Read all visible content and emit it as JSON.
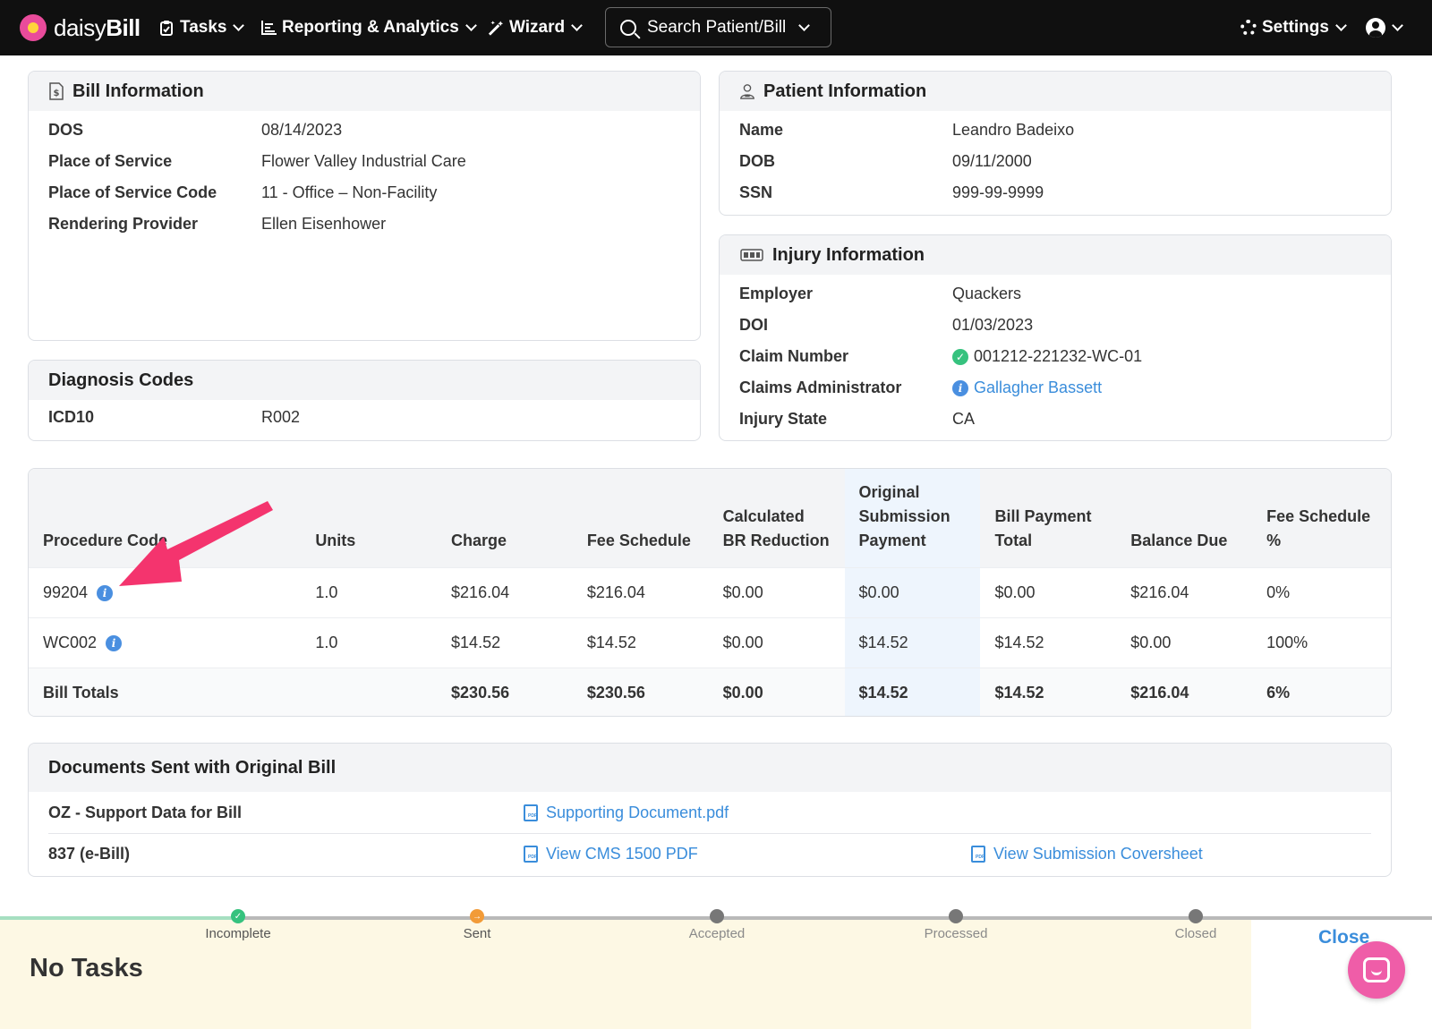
{
  "nav": {
    "brand_prefix": "daisy",
    "brand_suffix": "Bill",
    "tasks": "Tasks",
    "reporting": "Reporting & Analytics",
    "wizard": "Wizard",
    "search": "Search Patient/Bill",
    "settings": "Settings"
  },
  "bill_info": {
    "title": "Bill Information",
    "rows": [
      {
        "label": "DOS",
        "value": "08/14/2023"
      },
      {
        "label": "Place of Service",
        "value": "Flower Valley Industrial Care"
      },
      {
        "label": "Place of Service Code",
        "value": "11 - Office – Non-Facility"
      },
      {
        "label": "Rendering Provider",
        "value": "Ellen Eisenhower"
      }
    ]
  },
  "diagnosis": {
    "title": "Diagnosis Codes",
    "label": "ICD10",
    "value": "R002"
  },
  "patient": {
    "title": "Patient Information",
    "rows": [
      {
        "label": "Name",
        "value": "Leandro Badeixo"
      },
      {
        "label": "DOB",
        "value": "09/11/2000"
      },
      {
        "label": "SSN",
        "value": "999-99-9999"
      }
    ]
  },
  "injury": {
    "title": "Injury Information",
    "employer_label": "Employer",
    "employer": "Quackers",
    "doi_label": "DOI",
    "doi": "01/03/2023",
    "claim_label": "Claim Number",
    "claim": "001212-221232-WC-01",
    "admin_label": "Claims Administrator",
    "admin": "Gallagher Bassett",
    "state_label": "Injury State",
    "state": "CA"
  },
  "procedures": {
    "headers": {
      "code": "Procedure Code",
      "units": "Units",
      "charge": "Charge",
      "fee": "Fee Schedule",
      "br_1": "Calculated",
      "br_2": "BR Reduction",
      "osp_1": "Original",
      "osp_2": "Submission",
      "osp_3": "Payment",
      "bpt_1": "Bill Payment",
      "bpt_2": "Total",
      "balance": "Balance Due",
      "pct_1": "Fee Schedule",
      "pct_2": "%"
    },
    "rows": [
      {
        "code": "99204",
        "units": "1.0",
        "charge": "$216.04",
        "fee": "$216.04",
        "br": "$0.00",
        "osp": "$0.00",
        "bpt": "$0.00",
        "balance": "$216.04",
        "pct": "0%"
      },
      {
        "code": "WC002",
        "units": "1.0",
        "charge": "$14.52",
        "fee": "$14.52",
        "br": "$0.00",
        "osp": "$14.52",
        "bpt": "$14.52",
        "balance": "$0.00",
        "pct": "100%"
      }
    ],
    "totals": {
      "label": "Bill Totals",
      "charge": "$230.56",
      "fee": "$230.56",
      "br": "$0.00",
      "osp": "$14.52",
      "bpt": "$14.52",
      "balance": "$216.04",
      "pct": "6%"
    }
  },
  "documents": {
    "title": "Documents Sent with Original Bill",
    "row1_label": "OZ - Support Data for Bill",
    "row1_link": "Supporting Document.pdf",
    "row2_label": "837 (e-Bill)",
    "row2_link1": "View CMS 1500 PDF",
    "row2_link2": "View Submission Coversheet"
  },
  "status": {
    "steps": [
      "Incomplete",
      "Sent",
      "Accepted",
      "Processed",
      "Closed"
    ],
    "no_tasks": "No Tasks",
    "close": "Close"
  },
  "colors": {
    "nav_bg": "#101010",
    "link": "#3a8ddb",
    "accent_pink": "#ef5da8",
    "annotation_arrow": "#f4346e",
    "status_bg": "#fdf8e4"
  },
  "icons": {
    "arrow_annotation": "pink-arrow-pointing-to-info-icon"
  }
}
